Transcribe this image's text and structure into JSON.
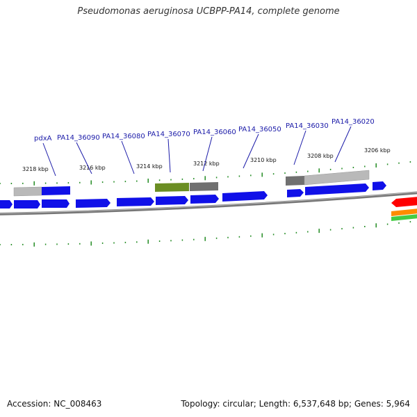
{
  "title": "Pseudomonas aeruginosa UCBPP-PA14, complete genome",
  "accession": "Accession: NC_008463",
  "footer_info": "Topology: circular; Length: 6,537,648 bp; Genes: 5,964",
  "gene_labels": [
    "pdxA",
    "PA14_36090",
    "PA14_36080",
    "PA14_36070",
    "PA14_36060",
    "PA14_36050",
    "PA14_36030",
    "PA14_36020"
  ],
  "scale_labels": [
    "3218 kbp",
    "3216 kbp",
    "3214 kbp",
    "3212 kbp",
    "3210 kbp",
    "3208 kbp",
    "3206 kbp"
  ],
  "colors": {
    "gene_blue": "#1010e8",
    "gene_gray": "#b9b9b9",
    "gene_dark_gray": "#707070",
    "gene_olive": "#6b8e23",
    "gene_red": "#ff0000",
    "gene_orange": "#ff8c00",
    "gene_green": "#44cc44",
    "backbone": "#888888",
    "tick_green": "#228b22",
    "label_blue": "#1a1aa8"
  }
}
